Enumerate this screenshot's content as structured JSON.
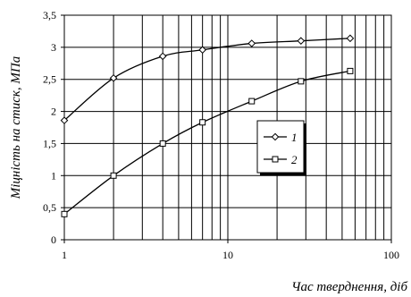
{
  "chart_data": {
    "type": "line",
    "x_scale": "log",
    "xlim": [
      1,
      100
    ],
    "ylim": [
      0,
      3.5
    ],
    "xlabel": "Час тверднення, діб",
    "ylabel": "Міцність на стиск, МПа",
    "x_ticks": [
      1,
      10,
      100
    ],
    "x_tick_labels": [
      "1",
      "10",
      "100"
    ],
    "y_ticks": [
      0,
      0.5,
      1,
      1.5,
      2,
      2.5,
      3,
      3.5
    ],
    "y_tick_labels": [
      "0",
      "0,5",
      "1",
      "1,5",
      "2",
      "2,5",
      "3",
      "3,5"
    ],
    "grid": true,
    "legend_position": "center-right",
    "series": [
      {
        "name": "1",
        "marker": "diamond",
        "x": [
          1,
          2,
          4,
          7,
          14,
          28,
          56
        ],
        "values": [
          1.86,
          2.52,
          2.86,
          2.96,
          3.06,
          3.1,
          3.14
        ]
      },
      {
        "name": "2",
        "marker": "square",
        "x": [
          1,
          2,
          4,
          7,
          14,
          28,
          56
        ],
        "values": [
          0.4,
          1.0,
          1.5,
          1.83,
          2.16,
          2.47,
          2.63
        ]
      }
    ]
  }
}
